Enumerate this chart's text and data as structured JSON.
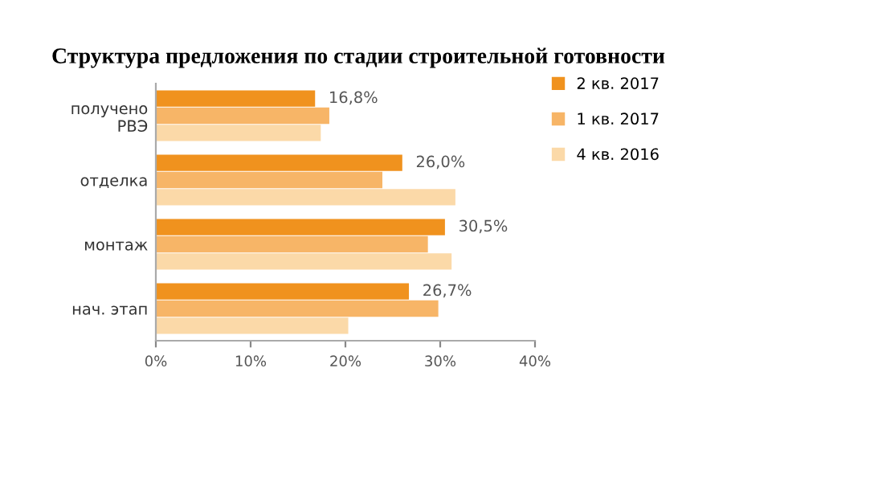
{
  "chart_data": {
    "type": "bar",
    "orientation": "horizontal",
    "title": "Структура предложения по стадии строительной готовности",
    "categories": [
      "получено\nРВЭ",
      "отделка",
      "монтаж",
      "нач. этап"
    ],
    "series": [
      {
        "name": "2 кв. 2017",
        "color": "#f0921e",
        "values": [
          16.8,
          26.0,
          30.5,
          26.7
        ],
        "value_labels": [
          "16,8%",
          "26,0%",
          "30,5%",
          "26,7%"
        ]
      },
      {
        "name": "1 кв. 2017",
        "color": "#f7b567",
        "values": [
          18.3,
          23.9,
          28.7,
          29.8
        ]
      },
      {
        "name": "4 кв. 2016",
        "color": "#fbd9a8",
        "values": [
          17.4,
          31.6,
          31.2,
          20.3
        ]
      }
    ],
    "xlim": [
      0,
      40
    ],
    "xticks": [
      {
        "value": 0,
        "label": "0%"
      },
      {
        "value": 10,
        "label": "10%"
      },
      {
        "value": 20,
        "label": "20%"
      },
      {
        "value": 30,
        "label": "30%"
      },
      {
        "value": 40,
        "label": "40%"
      }
    ],
    "grid": false,
    "legend": "top right"
  }
}
